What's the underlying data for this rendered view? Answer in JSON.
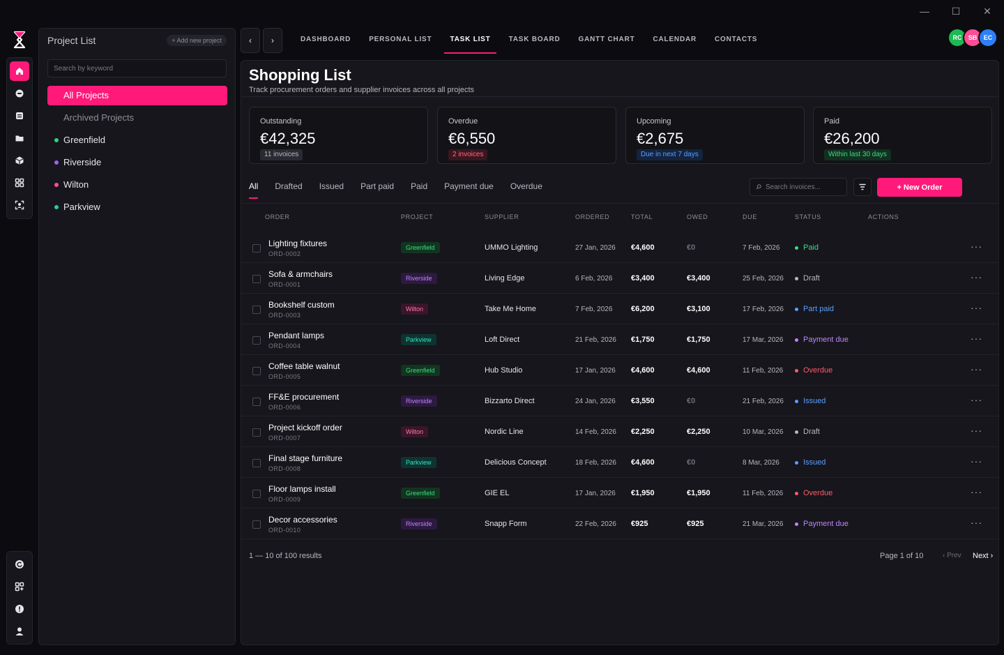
{
  "window": {
    "minimize": "—",
    "maximize": "☐",
    "close": "✕"
  },
  "rail": {
    "top_icons": [
      "home-icon",
      "chat-icon",
      "list-icon",
      "folder-icon",
      "cube-icon",
      "grid-icon",
      "scan-face-icon"
    ],
    "bottom_icons": [
      "refresh-icon",
      "grid-add-icon",
      "alert-icon",
      "user-icon"
    ]
  },
  "sidebar": {
    "title": "Project List",
    "add_label": "+ Add new project",
    "search_placeholder": "Search by keyword",
    "items": [
      {
        "label": "All Projects"
      },
      {
        "label": "Archived Projects"
      },
      {
        "label": "Greenfield",
        "color": "#2ed573"
      },
      {
        "label": "Riverside",
        "color": "#a55eea"
      },
      {
        "label": "Wilton",
        "color": "#ff4d94"
      },
      {
        "label": "Parkview",
        "color": "#1dd1a1"
      }
    ]
  },
  "topnav": {
    "prev": "‹",
    "next": "›",
    "tabs": [
      "DASHBOARD",
      "PERSONAL LIST",
      "TASK LIST",
      "TASK BOARD",
      "GANTT CHART",
      "CALENDAR",
      "CONTACTS"
    ],
    "active_tab": "TASK LIST",
    "avatars": [
      {
        "initials": "RC",
        "color": "#1db954"
      },
      {
        "initials": "SB",
        "color": "#ff4d94"
      },
      {
        "initials": "EC",
        "color": "#2d7ff9"
      }
    ]
  },
  "page": {
    "title": "Shopping List",
    "subtitle": "Track procurement orders and supplier invoices across all projects"
  },
  "cards": [
    {
      "label": "Outstanding",
      "value": "€42,325",
      "badge": "11 invoices",
      "badge_bg": "#2a2a33",
      "badge_fg": "#b8b8c0"
    },
    {
      "label": "Overdue",
      "value": "€6,550",
      "badge": "2 invoices",
      "badge_bg": "#3a1620",
      "badge_fg": "#ff6b7a"
    },
    {
      "label": "Upcoming",
      "value": "€2,675",
      "badge": "Due in next 7 days",
      "badge_bg": "#142440",
      "badge_fg": "#5aa0ff"
    },
    {
      "label": "Paid",
      "value": "€26,200",
      "badge": "Within last 30 days",
      "badge_bg": "#123020",
      "badge_fg": "#3ddc84"
    }
  ],
  "filters": [
    "All",
    "Drafted",
    "Issued",
    "Part paid",
    "Paid",
    "Payment due",
    "Overdue"
  ],
  "toolbar": {
    "search_placeholder": "Search invoices...",
    "new_order": "+ New Order"
  },
  "table": {
    "headers": [
      "ORDER",
      "PROJECT",
      "SUPPLIER",
      "ORDERED",
      "TOTAL",
      "OWED",
      "DUE",
      "STATUS",
      "ACTIONS"
    ],
    "rows": [
      {
        "name": "Lighting fixtures",
        "id": "ORD-0002",
        "project": "Greenfield",
        "supplier": "UMMO Lighting",
        "ordered": "27 Jan, 2026",
        "total": "€4,600",
        "owed": "€0",
        "due": "7 Feb, 2026",
        "status": "Paid"
      },
      {
        "name": "Sofa & armchairs",
        "id": "ORD-0001",
        "project": "Riverside",
        "supplier": "Living Edge",
        "ordered": "6 Feb, 2026",
        "total": "€3,400",
        "owed": "€3,400",
        "due": "25 Feb, 2026",
        "status": "Draft"
      },
      {
        "name": "Bookshelf custom",
        "id": "ORD-0003",
        "project": "Wilton",
        "supplier": "Take Me Home",
        "ordered": "7 Feb, 2026",
        "total": "€6,200",
        "owed": "€3,100",
        "due": "17 Feb, 2026",
        "status": "Part paid"
      },
      {
        "name": "Pendant lamps",
        "id": "ORD-0004",
        "project": "Parkview",
        "supplier": "Loft Direct",
        "ordered": "21 Feb, 2026",
        "total": "€1,750",
        "owed": "€1,750",
        "due": "17 Mar, 2026",
        "status": "Payment due"
      },
      {
        "name": "Coffee table walnut",
        "id": "ORD-0005",
        "project": "Greenfield",
        "supplier": "Hub Studio",
        "ordered": "17 Jan, 2026",
        "total": "€4,600",
        "owed": "€4,600",
        "due": "11 Feb, 2026",
        "status": "Overdue"
      },
      {
        "name": "FF&E procurement",
        "id": "ORD-0006",
        "project": "Riverside",
        "supplier": "Bizzarto Direct",
        "ordered": "24 Jan, 2026",
        "total": "€3,550",
        "owed": "€0",
        "due": "21 Feb, 2026",
        "status": "Issued"
      },
      {
        "name": "Project kickoff order",
        "id": "ORD-0007",
        "project": "Wilton",
        "supplier": "Nordic Line",
        "ordered": "14 Feb, 2026",
        "total": "€2,250",
        "owed": "€2,250",
        "due": "10 Mar, 2026",
        "status": "Draft"
      },
      {
        "name": "Final stage furniture",
        "id": "ORD-0008",
        "project": "Parkview",
        "supplier": "Delicious Concept",
        "ordered": "18 Feb, 2026",
        "total": "€4,600",
        "owed": "€0",
        "due": "8 Mar, 2026",
        "status": "Issued"
      },
      {
        "name": "Floor lamps install",
        "id": "ORD-0009",
        "project": "Greenfield",
        "supplier": "GIE EL",
        "ordered": "17 Jan, 2026",
        "total": "€1,950",
        "owed": "€1,950",
        "due": "11 Feb, 2026",
        "status": "Overdue"
      },
      {
        "name": "Decor accessories",
        "id": "ORD-0010",
        "project": "Riverside",
        "supplier": "Snapp Form",
        "ordered": "22 Feb, 2026",
        "total": "€925",
        "owed": "€925",
        "due": "21 Mar, 2026",
        "status": "Payment due"
      }
    ],
    "actions_glyph": "···"
  },
  "project_colors": {
    "Greenfield": {
      "bg": "#12351f",
      "fg": "#3ddc84"
    },
    "Riverside": {
      "bg": "#2d1a40",
      "fg": "#c084fc"
    },
    "Wilton": {
      "bg": "#3a1628",
      "fg": "#ff7ab0"
    },
    "Parkview": {
      "bg": "#0f3330",
      "fg": "#2ee6c0"
    }
  },
  "status_colors": {
    "Paid": "#3ddc84",
    "Draft": "#b8b8c0",
    "Part paid": "#5aa0ff",
    "Payment due": "#c084fc",
    "Overdue": "#ff5c6c",
    "Issued": "#5aa0ff"
  },
  "footer": {
    "results": "1 — 10 of 100 results",
    "page": "Page 1 of 10",
    "prev": "‹ Prev",
    "next": "Next ›"
  }
}
